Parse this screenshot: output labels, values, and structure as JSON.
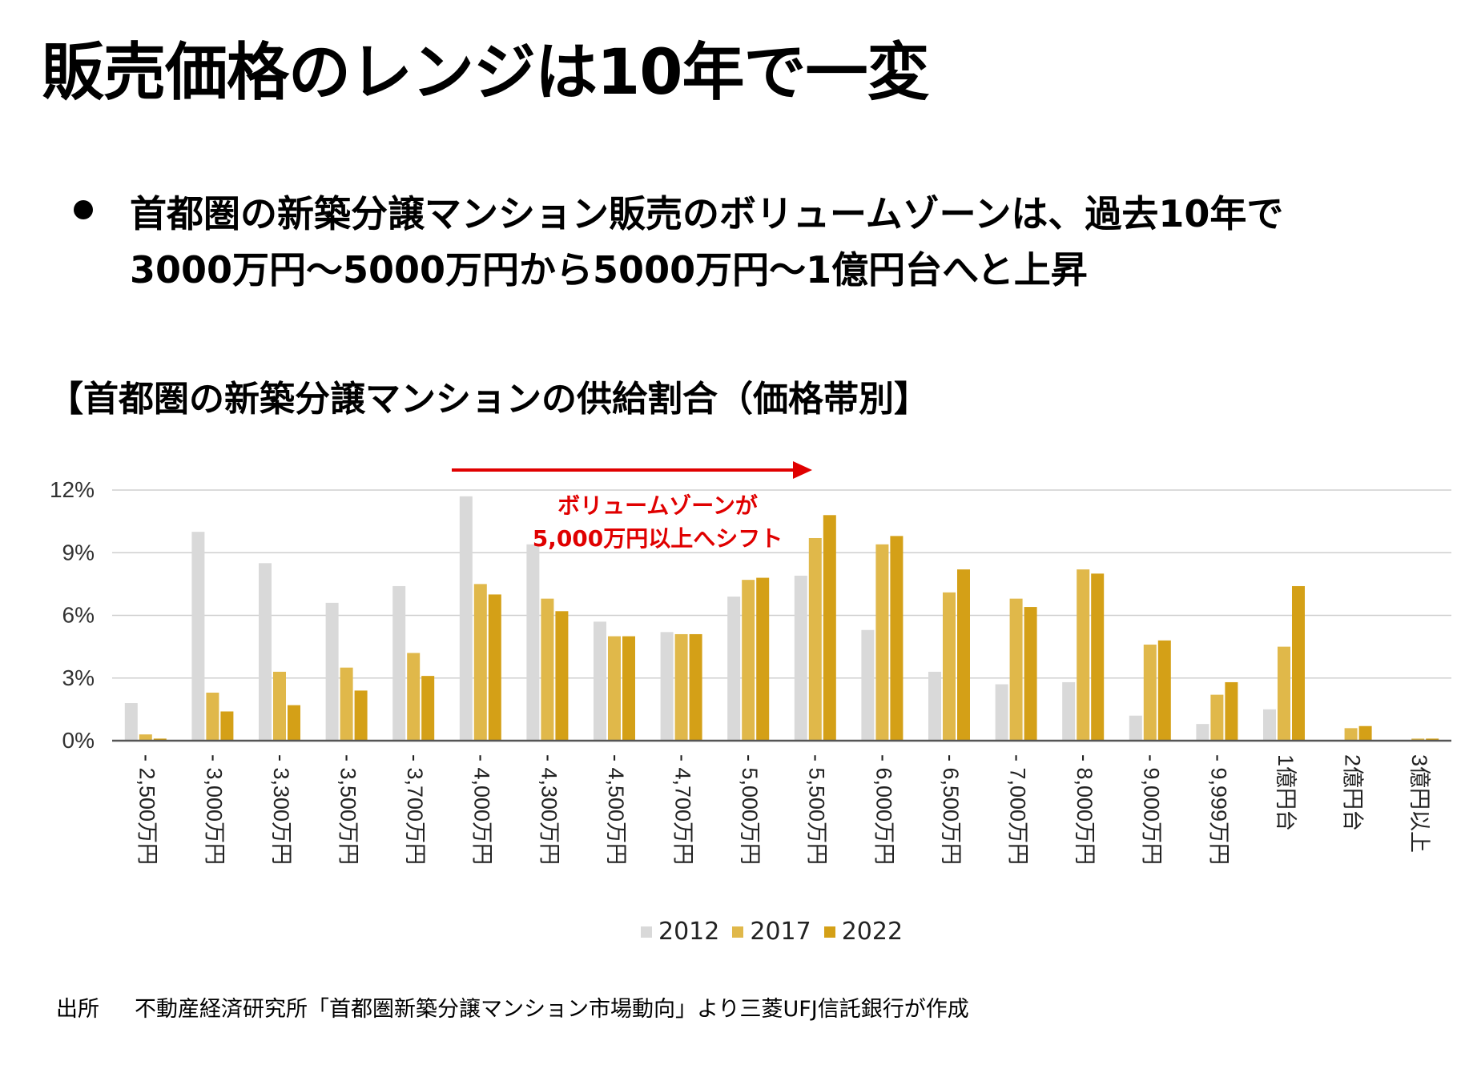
{
  "title": "販売価格のレンジは10年で一変",
  "bullet": {
    "line1": "首都圏の新築分譲マンション販売のボリュームゾーンは、過去10年で",
    "line2": "3000万円～5000万円から5000万円～1億円台へと上昇"
  },
  "chart_title": "【首都圏の新築分譲マンションの供給割合（価格帯別】",
  "annotation": {
    "line1": "ボリュームゾーンが",
    "line2": "5,000万円以上へシフト",
    "color": "#e00000"
  },
  "source": {
    "label": "出所",
    "text": "不動産経済研究所「首都圏新築分譲マンション市場動向」より三菱UFJ信託銀行が作成"
  },
  "chart_data": {
    "type": "bar",
    "title": "【首都圏の新築分譲マンションの供給割合（価格帯別】",
    "xlabel": "",
    "ylabel": "",
    "ylim": [
      0,
      12
    ],
    "yticks": [
      0,
      3,
      6,
      9,
      12
    ],
    "ytick_labels": [
      "0%",
      "3%",
      "6%",
      "9%",
      "12%"
    ],
    "grid": true,
    "legend_position": "bottom",
    "categories": [
      "- 2,500万円",
      "- 3,000万円",
      "- 3,300万円",
      "- 3,500万円",
      "- 3,700万円",
      "- 4,000万円",
      "- 4,300万円",
      "- 4,500万円",
      "- 4,700万円",
      "- 5,000万円",
      "- 5,500万円",
      "- 6,000万円",
      "- 6,500万円",
      "- 7,000万円",
      "- 8,000万円",
      "- 9,000万円",
      "- 9,999万円",
      "1億円台",
      "2億円台",
      "3億円以上"
    ],
    "series": [
      {
        "name": "2012",
        "color": "#d9d9d9",
        "values": [
          1.8,
          10.0,
          8.5,
          6.6,
          7.4,
          11.7,
          9.4,
          5.7,
          5.2,
          6.9,
          7.9,
          5.3,
          3.3,
          2.7,
          2.8,
          1.2,
          0.8,
          1.5,
          0.0,
          0.0
        ]
      },
      {
        "name": "2017",
        "color": "#e0b84a",
        "values": [
          0.3,
          2.3,
          3.3,
          3.5,
          4.2,
          7.5,
          6.8,
          5.0,
          5.1,
          7.7,
          9.7,
          9.4,
          7.1,
          6.8,
          8.2,
          4.6,
          2.2,
          4.5,
          0.6,
          0.1
        ]
      },
      {
        "name": "2022",
        "color": "#d4a017",
        "values": [
          0.1,
          1.4,
          1.7,
          2.4,
          3.1,
          7.0,
          6.2,
          5.0,
          5.1,
          7.8,
          10.8,
          9.8,
          8.2,
          6.4,
          8.0,
          4.8,
          2.8,
          7.4,
          0.7,
          0.1
        ]
      }
    ]
  }
}
